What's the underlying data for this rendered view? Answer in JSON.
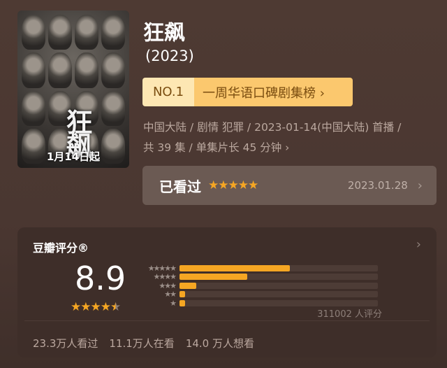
{
  "poster": {
    "title": "狂飙",
    "date": "1月14日起"
  },
  "title": "狂飙",
  "year": "(2023)",
  "rank": {
    "no": "NO.1",
    "label": "一周华语口碑剧集榜 ›"
  },
  "meta": {
    "line1": "中国大陆 / 剧情 犯罪 / 2023-01-14(中国大陆) 首播 /",
    "line2": "共 39 集 / 单集片长 45 分钟 ›"
  },
  "watched": {
    "label": "已看过",
    "stars": "★★★★★",
    "user_rating": 5,
    "date": "2023.01.28"
  },
  "rating": {
    "header": "豆瓣评分®",
    "score": "8.9",
    "stars": "★★★★★",
    "star_value": 4.5,
    "count": "311002 人评分",
    "distribution": [
      {
        "stars": "★★★★★",
        "percent": 55.6
      },
      {
        "stars": "★★★★",
        "percent": 34.0
      },
      {
        "stars": "★★★",
        "percent": 8.5
      },
      {
        "stars": "★★",
        "percent": 1.5
      },
      {
        "stars": "★",
        "percent": 1.5
      }
    ]
  },
  "stats": [
    "23.3万人看过",
    "11.1万人在看",
    "14.0 万人想看"
  ],
  "colors": {
    "accent": "#f5a623",
    "rank_bg": "#fbc86e"
  }
}
